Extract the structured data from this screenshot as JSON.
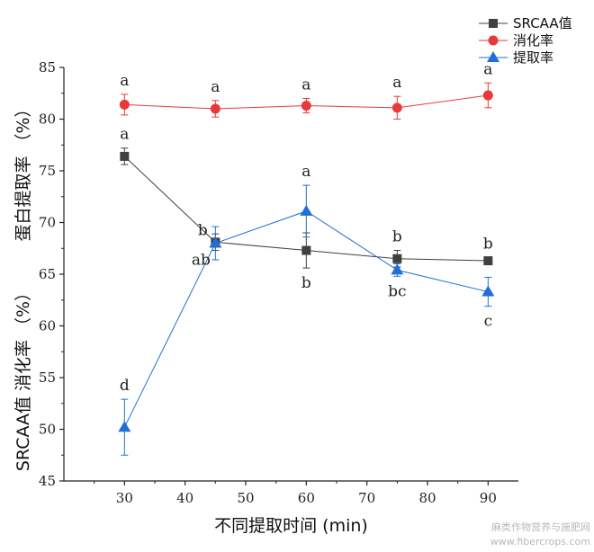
{
  "chart_data": {
    "type": "line",
    "x": [
      30,
      45,
      60,
      75,
      90
    ],
    "xlabel": "不同提取时间 (min)",
    "ylabel_lines": [
      "SRCAA值  消化率 （%）",
      "蛋白提取率 （%）"
    ],
    "xlim": [
      20,
      95
    ],
    "ylim": [
      45,
      85
    ],
    "xticks": [
      30,
      40,
      50,
      60,
      70,
      80,
      90
    ],
    "yticks": [
      45,
      50,
      55,
      60,
      65,
      70,
      75,
      80,
      85
    ],
    "grid": false,
    "legend_position": "top-right",
    "series": [
      {
        "name": "SRCAA值",
        "color": "#404040",
        "marker": "square",
        "values": [
          76.4,
          68.1,
          67.3,
          66.5,
          66.3
        ],
        "errors": [
          0.8,
          0.8,
          1.7,
          0.8,
          0.3
        ],
        "sig_labels": [
          "a",
          "b",
          "b",
          "b",
          "b"
        ],
        "label_pos": [
          "above",
          "above-left",
          "below",
          "above",
          "above"
        ]
      },
      {
        "name": "消化率",
        "color": "#e8393b",
        "marker": "circle",
        "values": [
          81.4,
          81.0,
          81.3,
          81.1,
          82.3
        ],
        "errors": [
          1.0,
          0.8,
          0.7,
          1.1,
          1.2
        ],
        "sig_labels": [
          "a",
          "a",
          "a",
          "a",
          "a"
        ],
        "label_pos": [
          "above",
          "above",
          "above",
          "above",
          "above"
        ]
      },
      {
        "name": "提取率",
        "color": "#1f6fd6",
        "marker": "triangle",
        "values": [
          50.2,
          68.0,
          71.1,
          65.4,
          63.3
        ],
        "errors": [
          2.7,
          1.6,
          2.5,
          0.6,
          1.4
        ],
        "sig_labels": [
          "d",
          "ab",
          "a",
          "bc",
          "c"
        ],
        "label_pos": [
          "above",
          "below-left",
          "above",
          "below",
          "below"
        ]
      }
    ]
  },
  "watermark": {
    "line1": "麻类作物营养与施肥网",
    "line2": "www.fibercrops.com"
  }
}
